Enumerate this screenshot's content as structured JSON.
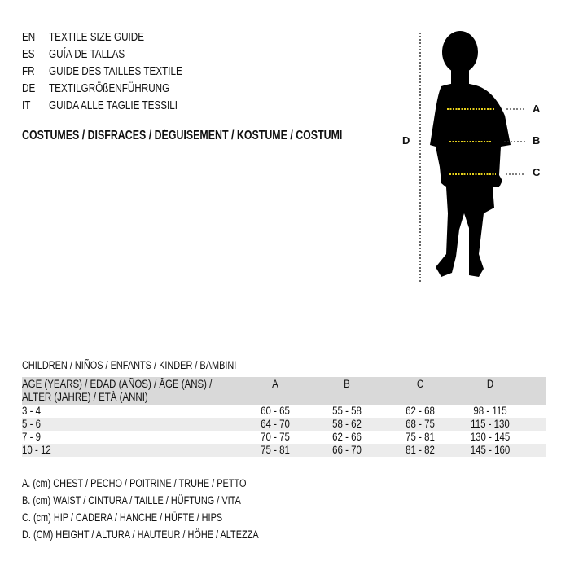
{
  "guide_titles": [
    {
      "code": "EN",
      "title": "TEXTILE SIZE GUIDE"
    },
    {
      "code": "ES",
      "title": "GUÍA DE TALLAS"
    },
    {
      "code": "FR",
      "title": "GUIDE DES TAILLES TEXTILE"
    },
    {
      "code": "DE",
      "title": "TEXTILGRÖßENFÜHRUNG"
    },
    {
      "code": "IT",
      "title": "GUIDA ALLE TAGLIE TESSILI"
    }
  ],
  "category": "COSTUMES / DISFRACES / DÉGUISEMENT / KOSTÜME / COSTUMI",
  "figure": {
    "labels": {
      "a": "A",
      "b": "B",
      "c": "C",
      "d": "D"
    },
    "measure_line_color": "#e8d21c"
  },
  "table": {
    "caption": "CHILDREN / NIÑOS / ENFANTS / KINDER / BAMBINI",
    "header": {
      "age_line1": "AGE (YEARS) / EDAD (AÑOS) / ÂGE (ANS) /",
      "age_line2": "ALTER (JAHRE) / ETÀ (ANNI)",
      "cols": [
        "A",
        "B",
        "C",
        "D"
      ]
    },
    "rows": [
      {
        "age": "3 - 4",
        "values": [
          "60 - 65",
          "55 - 58",
          "62 - 68",
          "98 - 115"
        ]
      },
      {
        "age": "5 - 6",
        "values": [
          "64 - 70",
          "58 - 62",
          "68 - 75",
          "115 - 130"
        ]
      },
      {
        "age": "7 - 9",
        "values": [
          "70 - 75",
          "62 - 66",
          "75 - 81",
          "130 - 145"
        ]
      },
      {
        "age": "10 - 12",
        "values": [
          "75 - 81",
          "66 - 70",
          "81 - 82",
          "145 - 160"
        ]
      }
    ]
  },
  "legend": [
    "A. (cm) CHEST / PECHO / POITRINE / TRUHE / PETTO",
    "B. (cm) WAIST / CINTURA / TAILLE / HÜFTUNG / VITA",
    "C. (cm) HIP / CADERA / HANCHE / HÜFTE / HIPS",
    "D. (CM) HEIGHT / ALTURA / HAUTEUR / HÖHE / ALTEZZA"
  ]
}
